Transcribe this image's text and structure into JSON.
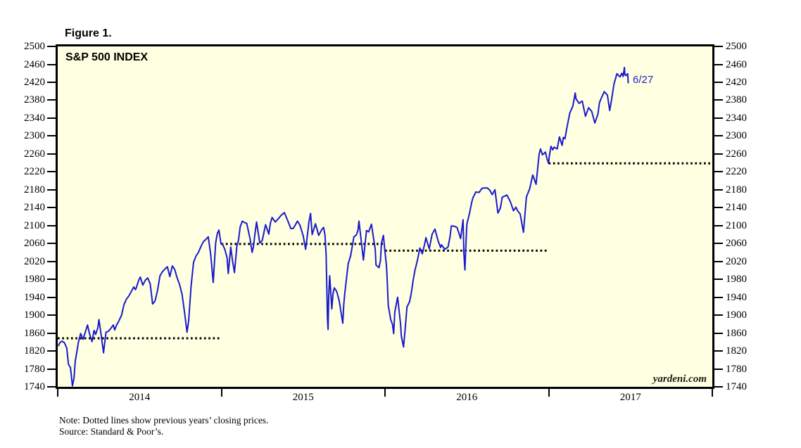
{
  "figure": {
    "label": "Figure 1."
  },
  "chart_data": {
    "type": "line",
    "title": "S&P 500 INDEX",
    "watermark": "yardeni.com",
    "note": "Note: Dotted lines show previous years’ closing prices.",
    "source": "Source: Standard & Poor’s.",
    "grid": "off",
    "legend": "none",
    "x_axis": {
      "range": [
        2014,
        2018
      ],
      "tick_years": [
        2014,
        2015,
        2016,
        2017,
        2018
      ],
      "year_labels": [
        "2014",
        "2015",
        "2016",
        "2017"
      ]
    },
    "y_axis": {
      "min": 1740,
      "max": 2500,
      "step": 40,
      "tick_values": [
        2500,
        2460,
        2420,
        2380,
        2340,
        2300,
        2260,
        2220,
        2180,
        2140,
        2100,
        2060,
        2020,
        1980,
        1940,
        1900,
        1860,
        1820,
        1780,
        1740
      ],
      "sides": [
        "left",
        "right"
      ]
    },
    "colors": {
      "line": "#1a1acd",
      "dotted": "#000000",
      "panel_bg": "#ffffe1",
      "annotation": "#2424cf",
      "border": "#000000"
    },
    "reference_lines": [
      {
        "value": 1848.36,
        "span": [
          2014,
          2015
        ],
        "prev_year_close_of": 2013
      },
      {
        "value": 2058.9,
        "span": [
          2015,
          2016
        ],
        "prev_year_close_of": 2014
      },
      {
        "value": 2043.94,
        "span": [
          2016,
          2017
        ],
        "prev_year_close_of": 2015
      },
      {
        "value": 2238.83,
        "span": [
          2017,
          2018
        ],
        "prev_year_close_of": 2016
      }
    ],
    "annotation": {
      "text": "6/27",
      "t": 2017.505,
      "value": 2424
    },
    "series": [
      {
        "name": "S&P 500",
        "points": [
          [
            2014.005,
            1832
          ],
          [
            2014.012,
            1838
          ],
          [
            2014.025,
            1842
          ],
          [
            2014.04,
            1839
          ],
          [
            2014.055,
            1827
          ],
          [
            2014.066,
            1790
          ],
          [
            2014.078,
            1783
          ],
          [
            2014.09,
            1742
          ],
          [
            2014.1,
            1760
          ],
          [
            2014.107,
            1797
          ],
          [
            2014.118,
            1820
          ],
          [
            2014.126,
            1839
          ],
          [
            2014.14,
            1859
          ],
          [
            2014.155,
            1846
          ],
          [
            2014.182,
            1878
          ],
          [
            2014.195,
            1858
          ],
          [
            2014.21,
            1841
          ],
          [
            2014.222,
            1866
          ],
          [
            2014.232,
            1857
          ],
          [
            2014.245,
            1872
          ],
          [
            2014.252,
            1890
          ],
          [
            2014.262,
            1865
          ],
          [
            2014.28,
            1816
          ],
          [
            2014.295,
            1862
          ],
          [
            2014.31,
            1864
          ],
          [
            2014.325,
            1871
          ],
          [
            2014.34,
            1878
          ],
          [
            2014.348,
            1867
          ],
          [
            2014.36,
            1878
          ],
          [
            2014.375,
            1888
          ],
          [
            2014.39,
            1900
          ],
          [
            2014.405,
            1924
          ],
          [
            2014.42,
            1936
          ],
          [
            2014.435,
            1943
          ],
          [
            2014.465,
            1963
          ],
          [
            2014.475,
            1957
          ],
          [
            2014.48,
            1961
          ],
          [
            2014.495,
            1978
          ],
          [
            2014.505,
            1985
          ],
          [
            2014.52,
            1967
          ],
          [
            2014.535,
            1978
          ],
          [
            2014.55,
            1983
          ],
          [
            2014.565,
            1970
          ],
          [
            2014.58,
            1925
          ],
          [
            2014.595,
            1932
          ],
          [
            2014.61,
            1955
          ],
          [
            2014.625,
            1988
          ],
          [
            2014.64,
            1997
          ],
          [
            2014.655,
            2003
          ],
          [
            2014.67,
            2008
          ],
          [
            2014.685,
            1986
          ],
          [
            2014.7,
            2010
          ],
          [
            2014.715,
            2002
          ],
          [
            2014.73,
            1983
          ],
          [
            2014.745,
            1968
          ],
          [
            2014.76,
            1946
          ],
          [
            2014.775,
            1906
          ],
          [
            2014.79,
            1862
          ],
          [
            2014.8,
            1887
          ],
          [
            2014.815,
            1965
          ],
          [
            2014.83,
            2018
          ],
          [
            2014.845,
            2032
          ],
          [
            2014.86,
            2040
          ],
          [
            2014.875,
            2053
          ],
          [
            2014.89,
            2064
          ],
          [
            2014.905,
            2069
          ],
          [
            2014.92,
            2075
          ],
          [
            2014.935,
            2035
          ],
          [
            2014.95,
            1973
          ],
          [
            2014.965,
            2061
          ],
          [
            2014.975,
            2082
          ],
          [
            2014.985,
            2090
          ],
          [
            2014.998,
            2059
          ],
          [
            2015.008,
            2058
          ],
          [
            2015.022,
            2046
          ],
          [
            2015.035,
            2028
          ],
          [
            2015.042,
            1993
          ],
          [
            2015.057,
            2052
          ],
          [
            2015.068,
            2022
          ],
          [
            2015.08,
            1995
          ],
          [
            2015.095,
            2055
          ],
          [
            2015.105,
            2068
          ],
          [
            2015.115,
            2097
          ],
          [
            2015.128,
            2110
          ],
          [
            2015.14,
            2107
          ],
          [
            2015.155,
            2105
          ],
          [
            2015.175,
            2071
          ],
          [
            2015.188,
            2040
          ],
          [
            2015.196,
            2053
          ],
          [
            2015.205,
            2081
          ],
          [
            2015.215,
            2108
          ],
          [
            2015.235,
            2061
          ],
          [
            2015.25,
            2067
          ],
          [
            2015.27,
            2102
          ],
          [
            2015.29,
            2081
          ],
          [
            2015.3,
            2106
          ],
          [
            2015.31,
            2118
          ],
          [
            2015.33,
            2108
          ],
          [
            2015.35,
            2116
          ],
          [
            2015.365,
            2123
          ],
          [
            2015.385,
            2129
          ],
          [
            2015.41,
            2107
          ],
          [
            2015.425,
            2093
          ],
          [
            2015.44,
            2094
          ],
          [
            2015.465,
            2110
          ],
          [
            2015.48,
            2101
          ],
          [
            2015.5,
            2077
          ],
          [
            2015.515,
            2047
          ],
          [
            2015.525,
            2077
          ],
          [
            2015.535,
            2108
          ],
          [
            2015.545,
            2127
          ],
          [
            2015.555,
            2080
          ],
          [
            2015.575,
            2104
          ],
          [
            2015.595,
            2078
          ],
          [
            2015.615,
            2092
          ],
          [
            2015.625,
            2096
          ],
          [
            2015.633,
            2079
          ],
          [
            2015.64,
            2036
          ],
          [
            2015.644,
            1971
          ],
          [
            2015.648,
            1894
          ],
          [
            2015.652,
            1868
          ],
          [
            2015.656,
            1941
          ],
          [
            2015.662,
            1988
          ],
          [
            2015.675,
            1914
          ],
          [
            2015.682,
            1948
          ],
          [
            2015.69,
            1961
          ],
          [
            2015.705,
            1953
          ],
          [
            2015.72,
            1932
          ],
          [
            2015.742,
            1882
          ],
          [
            2015.748,
            1924
          ],
          [
            2015.755,
            1951
          ],
          [
            2015.775,
            2015
          ],
          [
            2015.79,
            2033
          ],
          [
            2015.81,
            2075
          ],
          [
            2015.825,
            2079
          ],
          [
            2015.835,
            2090
          ],
          [
            2015.841,
            2110
          ],
          [
            2015.868,
            2023
          ],
          [
            2015.887,
            2089
          ],
          [
            2015.9,
            2086
          ],
          [
            2015.917,
            2103
          ],
          [
            2015.94,
            2047
          ],
          [
            2015.945,
            2012
          ],
          [
            2015.963,
            2006
          ],
          [
            2015.972,
            2021
          ],
          [
            2015.978,
            2061
          ],
          [
            2015.99,
            2078
          ],
          [
            2015.999,
            2044
          ],
          [
            2016.008,
            2013
          ],
          [
            2016.012,
            1990
          ],
          [
            2016.02,
            1922
          ],
          [
            2016.035,
            1890
          ],
          [
            2016.045,
            1880
          ],
          [
            2016.053,
            1859
          ],
          [
            2016.06,
            1907
          ],
          [
            2016.077,
            1940
          ],
          [
            2016.095,
            1880
          ],
          [
            2016.1,
            1853
          ],
          [
            2016.113,
            1829
          ],
          [
            2016.122,
            1865
          ],
          [
            2016.134,
            1918
          ],
          [
            2016.15,
            1930
          ],
          [
            2016.16,
            1948
          ],
          [
            2016.172,
            1978
          ],
          [
            2016.183,
            2000
          ],
          [
            2016.198,
            2022
          ],
          [
            2016.213,
            2050
          ],
          [
            2016.228,
            2037
          ],
          [
            2016.243,
            2060
          ],
          [
            2016.25,
            2073
          ],
          [
            2016.27,
            2048
          ],
          [
            2016.288,
            2081
          ],
          [
            2016.305,
            2092
          ],
          [
            2016.325,
            2065
          ],
          [
            2016.34,
            2051
          ],
          [
            2016.345,
            2057
          ],
          [
            2016.365,
            2047
          ],
          [
            2016.385,
            2052
          ],
          [
            2016.398,
            2076
          ],
          [
            2016.405,
            2099
          ],
          [
            2016.42,
            2099
          ],
          [
            2016.44,
            2096
          ],
          [
            2016.455,
            2079
          ],
          [
            2016.462,
            2071
          ],
          [
            2016.477,
            2113
          ],
          [
            2016.482,
            2037
          ],
          [
            2016.488,
            2001
          ],
          [
            2016.496,
            2071
          ],
          [
            2016.5,
            2103
          ],
          [
            2016.518,
            2130
          ],
          [
            2016.53,
            2152
          ],
          [
            2016.537,
            2162
          ],
          [
            2016.555,
            2175
          ],
          [
            2016.575,
            2174
          ],
          [
            2016.592,
            2183
          ],
          [
            2016.61,
            2184
          ],
          [
            2016.625,
            2184
          ],
          [
            2016.64,
            2179
          ],
          [
            2016.655,
            2169
          ],
          [
            2016.672,
            2180
          ],
          [
            2016.69,
            2128
          ],
          [
            2016.705,
            2139
          ],
          [
            2016.716,
            2163
          ],
          [
            2016.725,
            2165
          ],
          [
            2016.745,
            2168
          ],
          [
            2016.765,
            2154
          ],
          [
            2016.785,
            2133
          ],
          [
            2016.8,
            2141
          ],
          [
            2016.81,
            2133
          ],
          [
            2016.826,
            2126
          ],
          [
            2016.846,
            2085
          ],
          [
            2016.864,
            2164
          ],
          [
            2016.884,
            2182
          ],
          [
            2016.903,
            2213
          ],
          [
            2016.923,
            2192
          ],
          [
            2016.942,
            2260
          ],
          [
            2016.95,
            2271
          ],
          [
            2016.962,
            2258
          ],
          [
            2016.98,
            2264
          ],
          [
            2016.99,
            2249
          ],
          [
            2016.999,
            2239
          ],
          [
            2017.005,
            2258
          ],
          [
            2017.014,
            2277
          ],
          [
            2017.025,
            2269
          ],
          [
            2017.033,
            2275
          ],
          [
            2017.052,
            2271
          ],
          [
            2017.066,
            2298
          ],
          [
            2017.082,
            2279
          ],
          [
            2017.09,
            2297
          ],
          [
            2017.1,
            2294
          ],
          [
            2017.11,
            2316
          ],
          [
            2017.129,
            2351
          ],
          [
            2017.148,
            2367
          ],
          [
            2017.162,
            2396
          ],
          [
            2017.167,
            2383
          ],
          [
            2017.186,
            2373
          ],
          [
            2017.205,
            2378
          ],
          [
            2017.225,
            2344
          ],
          [
            2017.244,
            2363
          ],
          [
            2017.263,
            2355
          ],
          [
            2017.282,
            2329
          ],
          [
            2017.301,
            2349
          ],
          [
            2017.31,
            2374
          ],
          [
            2017.321,
            2384
          ],
          [
            2017.34,
            2399
          ],
          [
            2017.359,
            2391
          ],
          [
            2017.373,
            2357
          ],
          [
            2017.385,
            2382
          ],
          [
            2017.399,
            2416
          ],
          [
            2017.417,
            2439
          ],
          [
            2017.436,
            2432
          ],
          [
            2017.447,
            2440
          ],
          [
            2017.455,
            2433
          ],
          [
            2017.463,
            2453
          ],
          [
            2017.466,
            2437
          ],
          [
            2017.472,
            2435
          ],
          [
            2017.483,
            2439
          ],
          [
            2017.486,
            2419
          ]
        ]
      }
    ]
  }
}
